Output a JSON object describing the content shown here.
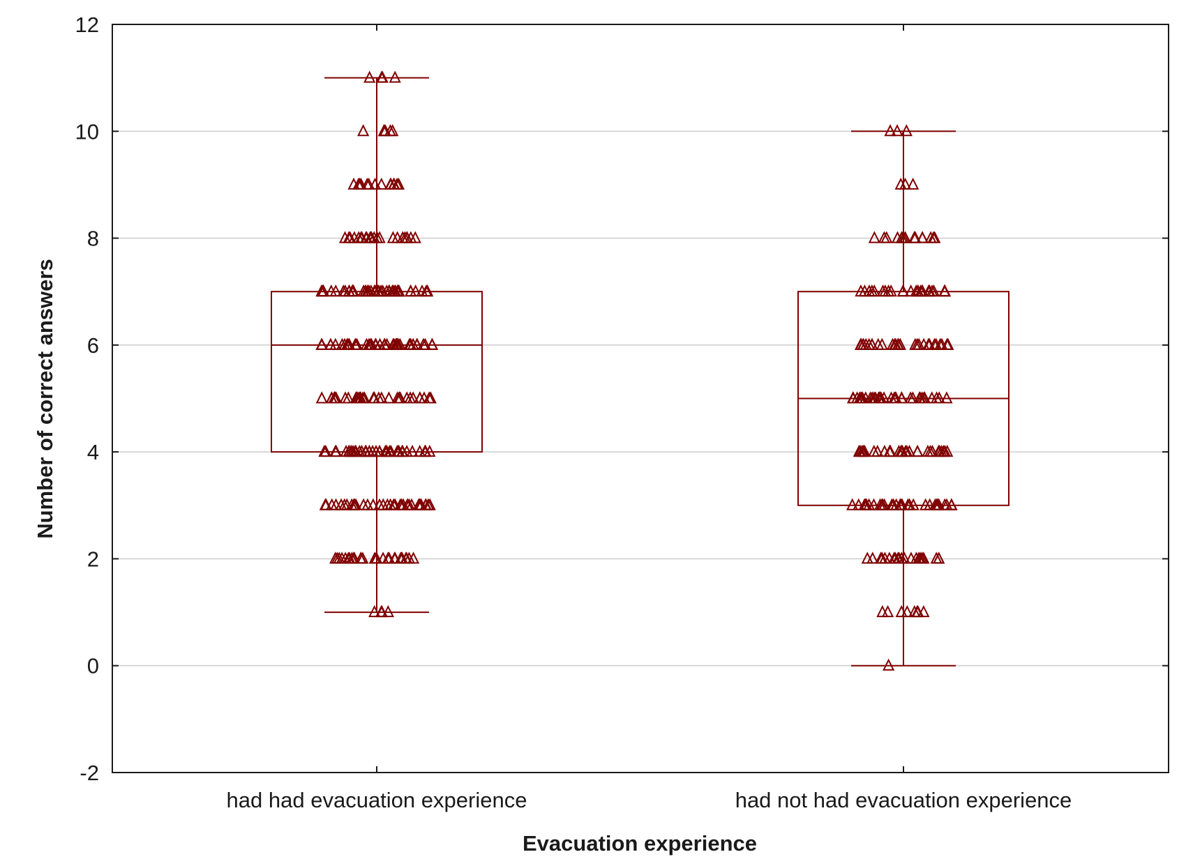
{
  "chart_data": {
    "type": "box",
    "title": "",
    "xlabel": "Evacuation experience",
    "ylabel": "Number of correct answers",
    "ylim": [
      -2,
      12
    ],
    "yticks": [
      -2,
      0,
      2,
      4,
      6,
      8,
      10,
      12
    ],
    "grid": true,
    "marker": "open-triangle",
    "color": "#800000",
    "categories": [
      "had had evacuation experience",
      "had not had evacuation experience"
    ],
    "boxes": [
      {
        "name": "had had evacuation experience",
        "whisker_low": 1,
        "q1": 4,
        "median": 6,
        "q3": 7,
        "whisker_high": 11,
        "points": [
          {
            "y": 11,
            "n": 4
          },
          {
            "y": 10,
            "n": 6
          },
          {
            "y": 9,
            "n": 14
          },
          {
            "y": 8,
            "n": 24
          },
          {
            "y": 7,
            "n": 45
          },
          {
            "y": 6,
            "n": 45
          },
          {
            "y": 5,
            "n": 38
          },
          {
            "y": 4,
            "n": 40
          },
          {
            "y": 3,
            "n": 36
          },
          {
            "y": 2,
            "n": 28
          },
          {
            "y": 1,
            "n": 4
          }
        ]
      },
      {
        "name": "had not had evacuation experience",
        "whisker_low": 0,
        "q1": 3,
        "median": 5,
        "q3": 7,
        "whisker_high": 10,
        "points": [
          {
            "y": 10,
            "n": 3
          },
          {
            "y": 9,
            "n": 3
          },
          {
            "y": 8,
            "n": 16
          },
          {
            "y": 7,
            "n": 26
          },
          {
            "y": 6,
            "n": 28
          },
          {
            "y": 5,
            "n": 34
          },
          {
            "y": 4,
            "n": 30
          },
          {
            "y": 3,
            "n": 34
          },
          {
            "y": 2,
            "n": 22
          },
          {
            "y": 1,
            "n": 8
          },
          {
            "y": 0,
            "n": 1
          }
        ]
      }
    ]
  }
}
